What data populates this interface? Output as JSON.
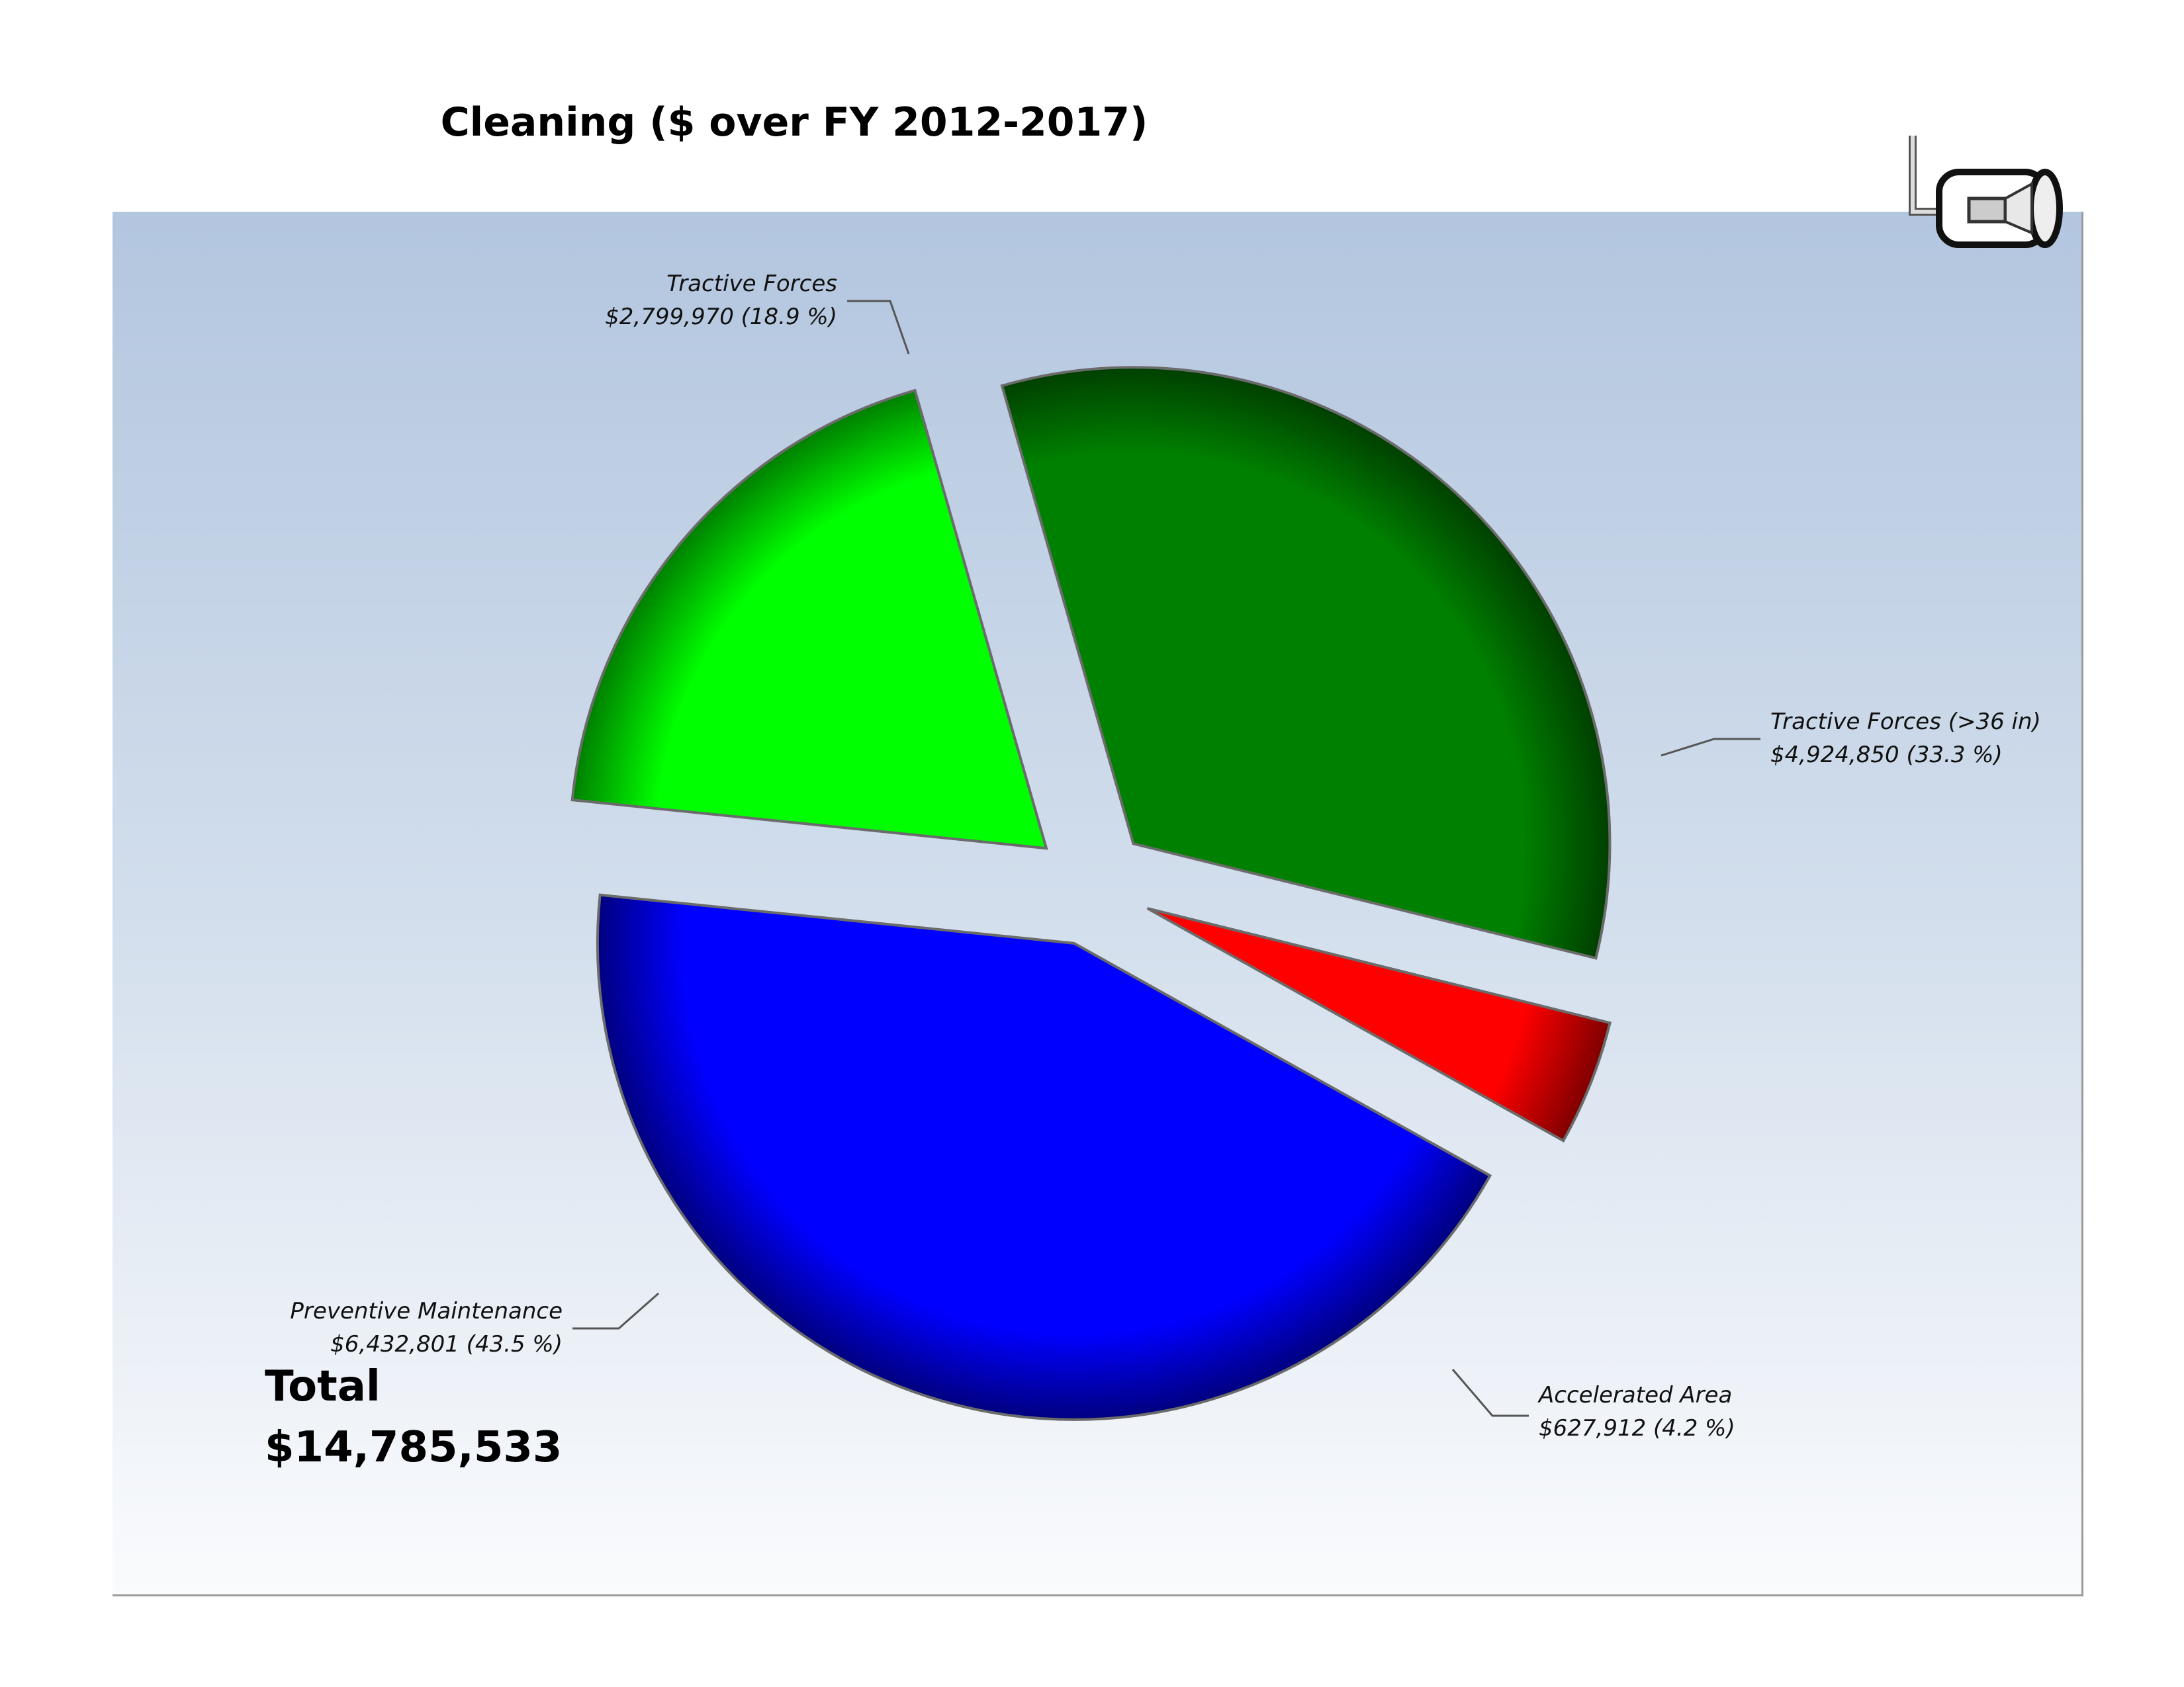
{
  "chart_data": {
    "type": "pie",
    "title": "Cleaning ($ over FY 2012-2017)",
    "total_label": "Total",
    "total_value": "$14,785,533",
    "slices": [
      {
        "name": "Tractive Forces (>36 in)",
        "value": 4924850,
        "value_label": "$4,924,850 (33.3 %)",
        "percent": 33.3,
        "color": "#008000"
      },
      {
        "name": "Accelerated Area",
        "value": 627912,
        "value_label": "$627,912 (4.2 %)",
        "percent": 4.2,
        "color": "#ff0000"
      },
      {
        "name": "Preventive Maintenance",
        "value": 6432801,
        "value_label": "$6,432,801 (43.5 %)",
        "percent": 43.5,
        "color": "#0000ff"
      },
      {
        "name": "Tractive Forces",
        "value": 2799970,
        "value_label": "$2,799,970 (18.9 %)",
        "percent": 18.9,
        "color": "#00ff00"
      }
    ],
    "legend": "none",
    "grid": false
  },
  "logo": {
    "icon": "pipe-camera-icon"
  }
}
